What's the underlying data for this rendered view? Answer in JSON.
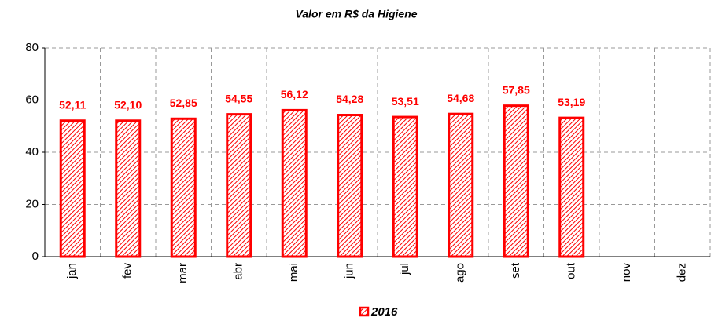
{
  "chart_data": {
    "type": "bar",
    "title": "Valor em R$ da Higiene",
    "categories": [
      "jan",
      "fev",
      "mar",
      "abr",
      "mai",
      "jun",
      "jul",
      "ago",
      "set",
      "out",
      "nov",
      "dez"
    ],
    "series": [
      {
        "name": "2016",
        "color": "#ff0000",
        "values": [
          52.11,
          52.1,
          52.85,
          54.55,
          56.12,
          54.28,
          53.51,
          54.68,
          57.85,
          53.19,
          null,
          null
        ],
        "value_labels": [
          "52,11",
          "52,10",
          "52,85",
          "54,55",
          "56,12",
          "54,28",
          "53,51",
          "54,68",
          "57,85",
          "53,19",
          null,
          null
        ]
      }
    ],
    "ylim": [
      0,
      80
    ],
    "yticks": [
      0,
      20,
      40,
      60,
      80
    ],
    "grid": true,
    "legend": "bottom"
  }
}
